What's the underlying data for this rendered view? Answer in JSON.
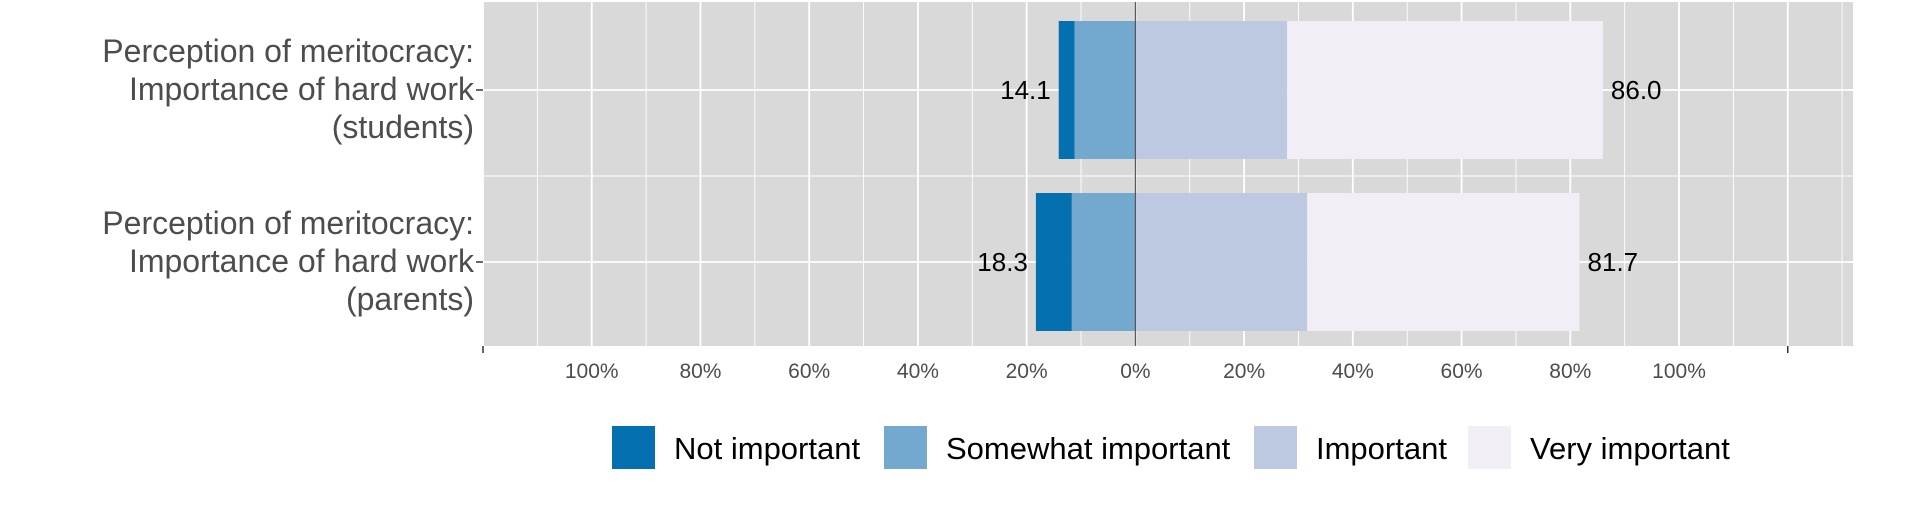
{
  "chart_data": {
    "type": "bar",
    "orientation": "horizontal-diverging",
    "categories": [
      [
        "Perception of meritocracy:",
        "Importance of hard work",
        "(students)"
      ],
      [
        "Perception of meritocracy:",
        "Importance of hard work",
        "(parents)"
      ]
    ],
    "series": [
      {
        "name": "Not important",
        "color": "#0570b0",
        "values": [
          -2.9,
          -6.6
        ]
      },
      {
        "name": "Somewhat important",
        "color": "#74a9cf",
        "values": [
          -11.2,
          -11.7
        ]
      },
      {
        "name": "Important",
        "color": "#bdc9e1",
        "values": [
          27.9,
          31.6
        ]
      },
      {
        "name": "Very important",
        "color": "#f1eef6",
        "values": [
          58.1,
          50.1
        ]
      }
    ],
    "negative_totals": [
      "14.1",
      "18.3"
    ],
    "positive_totals": [
      "86.0",
      "81.7"
    ],
    "x_ticks": [
      "100%",
      "80%",
      "60%",
      "40%",
      "20%",
      "0%",
      "20%",
      "40%",
      "60%",
      "80%",
      "100%"
    ],
    "xlim": [
      -120,
      132
    ],
    "legend_position": "bottom",
    "grid": true,
    "panel_background": "#d9d9d9"
  }
}
